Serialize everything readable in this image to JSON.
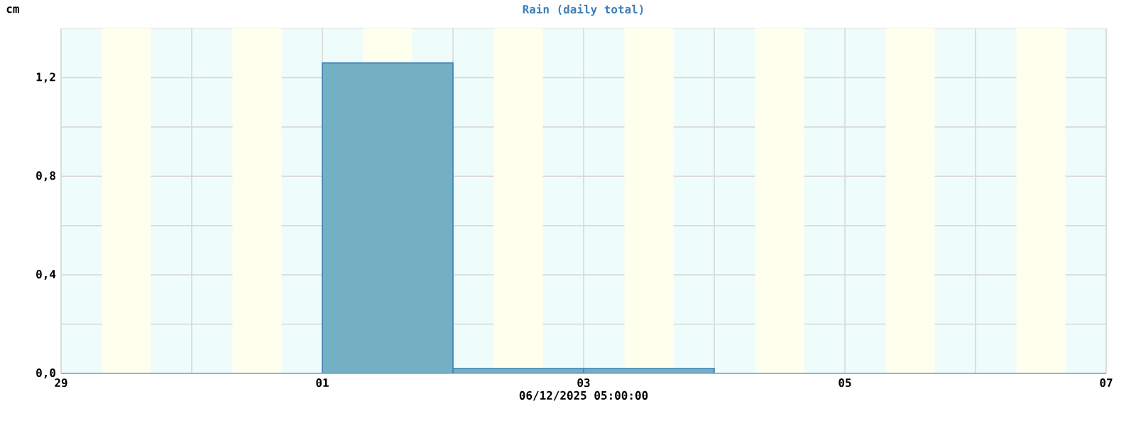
{
  "chart_data": {
    "type": "bar",
    "title": "Rain (daily total)",
    "xlabel": "06/12/2025 05:00:00",
    "ylabel": "cm",
    "x": [
      "2025-12-01T12:00",
      "2025-12-02T12:00",
      "2025-12-03T12:00"
    ],
    "values": [
      1.26,
      0.02,
      0.02
    ],
    "color": "#73b0c4",
    "xlim": [
      "2025-11-29",
      "2025-12-07"
    ],
    "xticks": [
      {
        "value": "2025-11-29",
        "label": "29"
      },
      {
        "value": "2025-11-30",
        "label": null
      },
      {
        "value": "2025-12-01",
        "label": "01"
      },
      {
        "value": "2025-12-02",
        "label": null
      },
      {
        "value": "2025-12-03",
        "label": "03"
      },
      {
        "value": "2025-12-04",
        "label": null
      },
      {
        "value": "2025-12-05",
        "label": "05"
      },
      {
        "value": "2025-12-06",
        "label": null
      },
      {
        "value": "2025-12-07",
        "label": "07"
      }
    ],
    "ylim": [
      0,
      1.4
    ],
    "yticks": [
      {
        "value": 0,
        "label": "0,0"
      },
      {
        "value": 0.2,
        "label": null
      },
      {
        "value": 0.4,
        "label": "0,4"
      },
      {
        "value": 0.6,
        "label": null
      },
      {
        "value": 0.8,
        "label": "0,8"
      },
      {
        "value": 1.0,
        "label": null
      },
      {
        "value": 1.2,
        "label": "1,2"
      }
    ],
    "grid": true,
    "bands": [
      {
        "axis": "x",
        "from": "2025-11-29T07:30",
        "to": "2025-11-29T16:30",
        "color": "#ffffee"
      },
      {
        "axis": "x",
        "from": "2025-11-30T07:30",
        "to": "2025-11-30T16:30",
        "color": "#ffffee"
      },
      {
        "axis": "x",
        "from": "2025-12-01T07:30",
        "to": "2025-12-01T16:30",
        "color": "#ffffee"
      },
      {
        "axis": "x",
        "from": "2025-12-02T07:30",
        "to": "2025-12-02T16:30",
        "color": "#ffffee"
      },
      {
        "axis": "x",
        "from": "2025-12-03T07:30",
        "to": "2025-12-03T16:30",
        "color": "#ffffee"
      },
      {
        "axis": "x",
        "from": "2025-12-04T07:30",
        "to": "2025-12-04T16:30",
        "color": "#ffffee"
      },
      {
        "axis": "x",
        "from": "2025-12-05T07:30",
        "to": "2025-12-05T16:30",
        "color": "#ffffee"
      },
      {
        "axis": "x",
        "from": "2025-12-06T07:30",
        "to": "2025-12-06T16:30",
        "color": "#ffffee"
      }
    ]
  }
}
